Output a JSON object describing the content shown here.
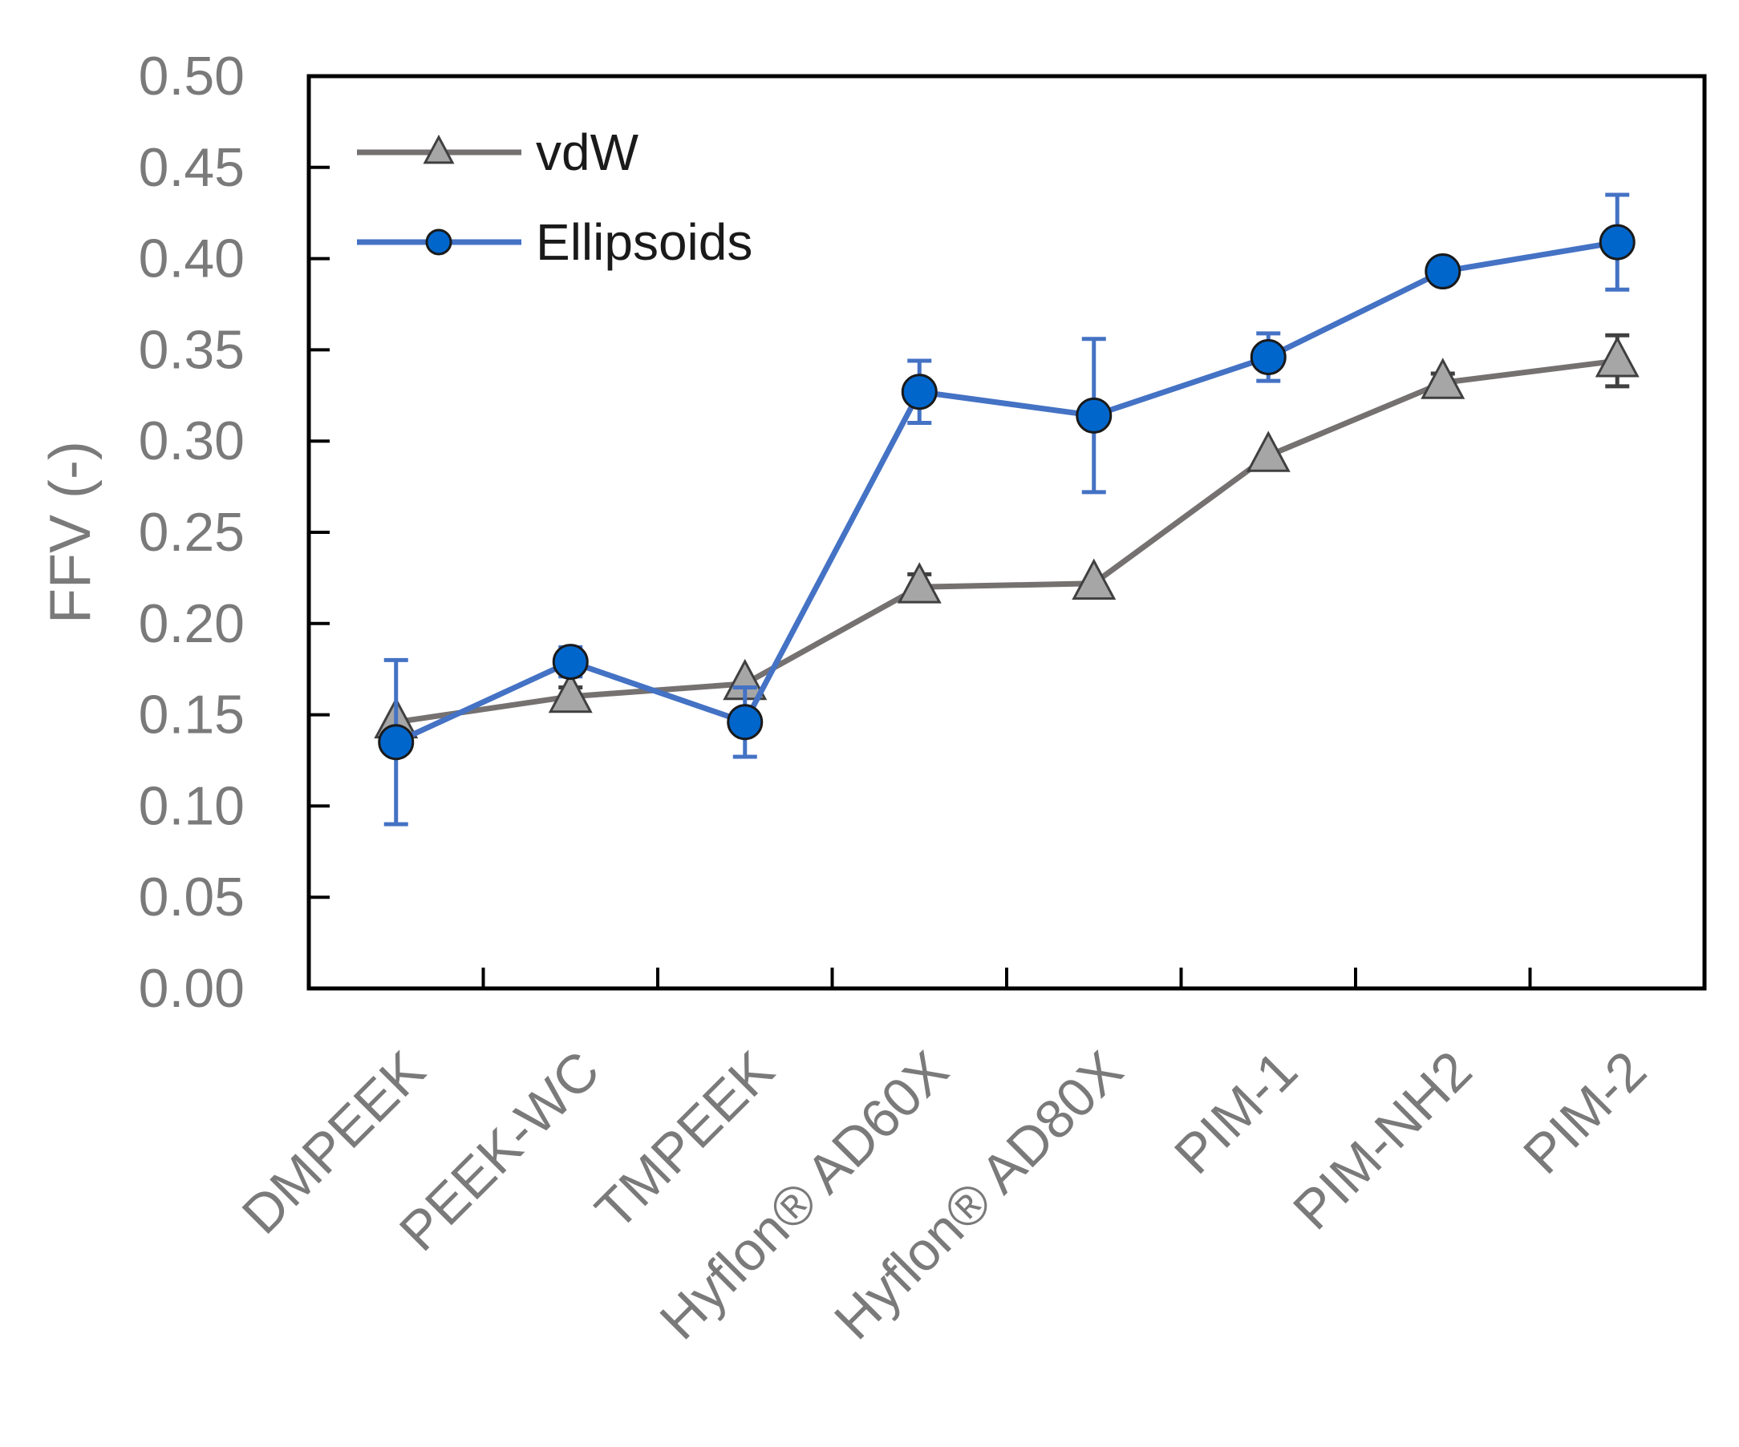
{
  "chart_data": {
    "type": "line",
    "title": "",
    "xlabel": "",
    "ylabel": "FFV (-)",
    "ylim": [
      0.0,
      0.5
    ],
    "ytick_step": 0.05,
    "yticks": [
      "0.00",
      "0.05",
      "0.10",
      "0.15",
      "0.20",
      "0.25",
      "0.30",
      "0.35",
      "0.40",
      "0.45",
      "0.50"
    ],
    "categories": [
      "DMPEEK",
      "PEEK-WC",
      "TMPEEK",
      "Hyflon® AD60X",
      "Hyflon® AD80X",
      "PIM-1",
      "PIM-NH2",
      "PIM-2"
    ],
    "legend_position": "top-left",
    "grid": false,
    "series": [
      {
        "name": "vdW",
        "marker": "triangle",
        "line_color": "#767171",
        "marker_color": "#a6a6a6",
        "values": [
          0.146,
          0.16,
          0.167,
          0.22,
          0.222,
          0.292,
          0.332,
          0.344
        ],
        "errors": [
          0.0,
          0.005,
          0.0,
          0.007,
          0.0,
          0.0,
          0.005,
          0.014
        ]
      },
      {
        "name": "Ellipsoids",
        "marker": "circle",
        "line_color": "#4472c4",
        "marker_color": "#0066cc",
        "values": [
          0.135,
          0.179,
          0.146,
          0.327,
          0.314,
          0.346,
          0.393,
          0.409
        ],
        "errors": [
          0.045,
          0.008,
          0.019,
          0.017,
          0.042,
          0.013,
          0.0,
          0.026
        ]
      }
    ]
  }
}
